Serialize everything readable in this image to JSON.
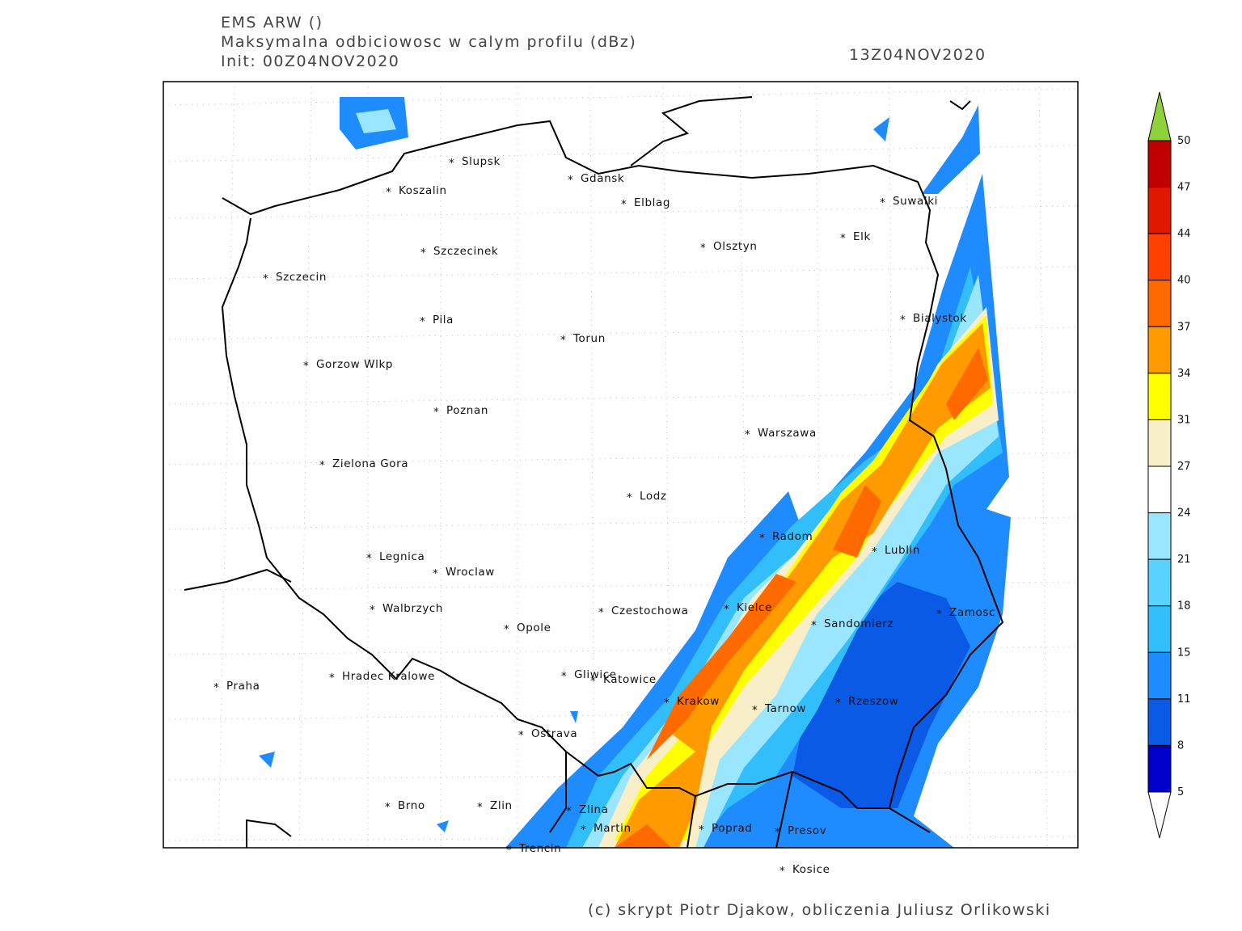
{
  "header": {
    "model": "EMS ARW ()",
    "field": "Maksymalna odbiciowosc w calym profilu (dBz)",
    "init": "Init: 00Z04NOV2020",
    "valid": "13Z04NOV2020"
  },
  "cities": [
    "Slupsk",
    "Koszalin",
    "Gdansk",
    "Elblag",
    "Suwalki",
    "Elk",
    "Olsztyn",
    "Szczecinek",
    "Szczecin",
    "Bialystok",
    "Pila",
    "Torun",
    "Gorzow Wlkp",
    "Poznan",
    "Warszawa",
    "Zielona Gora",
    "Lodz",
    "Radom",
    "Lublin",
    "Legnica",
    "Wroclaw",
    "Walbrzych",
    "Czestochowa",
    "Kielce",
    "Zamosc",
    "Opole",
    "Sandomierz",
    "Hradec Kralowe",
    "Gliwice",
    "Katowice",
    "Praha",
    "Krakow",
    "Rzeszow",
    "Tarnow",
    "Ostrava",
    "Brno",
    "Zlin",
    "Zlina",
    "Martin",
    "Poprad",
    "Presov",
    "Trencin",
    "Kosice"
  ],
  "city_marker": "*",
  "colorbar": {
    "labels": [
      50,
      47,
      44,
      40,
      37,
      34,
      31,
      27,
      24,
      21,
      18,
      15,
      11,
      8,
      5
    ],
    "colors": [
      "#c00000",
      "#e01800",
      "#ff4000",
      "#ff6a00",
      "#ff9a00",
      "#ffff00",
      "#f8efc8",
      "#ffffff",
      "#9ae6ff",
      "#5ad2ff",
      "#32befa",
      "#1e8cff",
      "#0a5ae6",
      "#0000c8"
    ],
    "over_color": "#8fd13a",
    "under_color": "#ffffff"
  },
  "footer": "(c) skrypt Piotr Djakow, obliczenia Juliusz Orlikowski"
}
